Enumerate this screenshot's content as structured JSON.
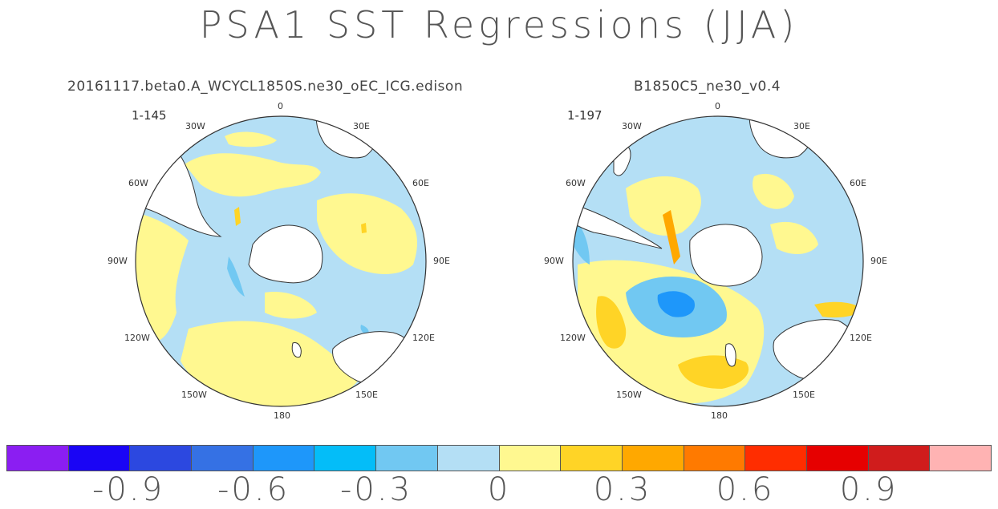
{
  "title": "PSA1 SST Regressions (JJA)",
  "panels": [
    {
      "title": "20161117.beta0.A_WCYCL1850S.ne30_oEC_ICG.edison",
      "subtitle": "1-145"
    },
    {
      "title": "B1850C5_ne30_v0.4",
      "subtitle": "1-197"
    }
  ],
  "longitude_labels": {
    "lon_0": "0",
    "lon_30e": "30E",
    "lon_60e": "60E",
    "lon_90e": "90E",
    "lon_120e": "120E",
    "lon_150e": "150E",
    "lon_180": "180",
    "lon_150w": "150W",
    "lon_120w": "120W",
    "lon_90w": "90W",
    "lon_60w": "60W",
    "lon_30w": "30W"
  },
  "colorbar": {
    "colors": [
      "#8b1ef2",
      "#1a05f5",
      "#2c48e0",
      "#3571e4",
      "#1e97fa",
      "#04bdf8",
      "#71c8f2",
      "#b4dff5",
      "#fff890",
      "#ffd426",
      "#ffa800",
      "#ff7a00",
      "#ff2d00",
      "#e60000",
      "#d01c1c",
      "#ffb3b3"
    ],
    "labels": [
      "-0.9",
      "-0.6",
      "-0.3",
      "0",
      "0.3",
      "0.6",
      "0.9"
    ]
  },
  "colors": {
    "land": "#ffffff",
    "coast": "#333333",
    "base_field": "#b4dff5",
    "weak_pos": "#fff890",
    "mod_pos": "#ffd426",
    "strong_pos": "#ffa800",
    "weak_neg": "#71c8f2",
    "mod_neg": "#1e97fa"
  }
}
